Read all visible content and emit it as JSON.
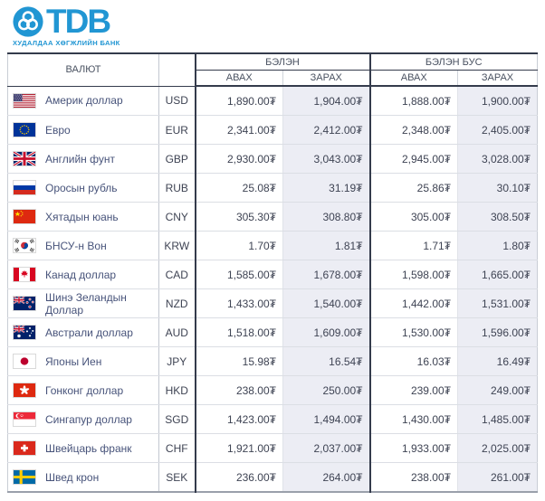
{
  "brand": {
    "name": "TDB",
    "tagline": "ХУДАЛДАА ХӨГЖЛИЙН БАНК"
  },
  "colors": {
    "brand_blue": "#2196d3",
    "header_border": "#343b4c",
    "sell_column_bg": "#ecedf4",
    "table_bottom_border": "#9aa0ab"
  },
  "table": {
    "columns": {
      "currency": "ВАЛЮТ",
      "cash": "БЭЛЭН",
      "non_cash": "БЭЛЭН БУС",
      "buy": "АВАХ",
      "sell": "ЗАРАХ"
    },
    "rows": [
      {
        "name": "Америк доллар",
        "code": "USD",
        "flag": "flag-usd-icon",
        "cash_buy": "1,890.00₮",
        "cash_sell": "1,904.00₮",
        "noncash_buy": "1,888.00₮",
        "noncash_sell": "1,900.00₮"
      },
      {
        "name": "Евро",
        "code": "EUR",
        "flag": "flag-eur-icon",
        "cash_buy": "2,341.00₮",
        "cash_sell": "2,412.00₮",
        "noncash_buy": "2,348.00₮",
        "noncash_sell": "2,405.00₮"
      },
      {
        "name": "Английн фунт",
        "code": "GBP",
        "flag": "flag-gbp-icon",
        "cash_buy": "2,930.00₮",
        "cash_sell": "3,043.00₮",
        "noncash_buy": "2,945.00₮",
        "noncash_sell": "3,028.00₮"
      },
      {
        "name": "Оросын рубль",
        "code": "RUB",
        "flag": "flag-rub-icon",
        "cash_buy": "25.08₮",
        "cash_sell": "31.19₮",
        "noncash_buy": "25.86₮",
        "noncash_sell": "30.10₮"
      },
      {
        "name": "Хятадын юань",
        "code": "CNY",
        "flag": "flag-cny-icon",
        "cash_buy": "305.30₮",
        "cash_sell": "308.80₮",
        "noncash_buy": "305.00₮",
        "noncash_sell": "308.50₮"
      },
      {
        "name": "БНСУ-н Вон",
        "code": "KRW",
        "flag": "flag-krw-icon",
        "cash_buy": "1.70₮",
        "cash_sell": "1.81₮",
        "noncash_buy": "1.71₮",
        "noncash_sell": "1.80₮"
      },
      {
        "name": "Канад доллар",
        "code": "CAD",
        "flag": "flag-cad-icon",
        "cash_buy": "1,585.00₮",
        "cash_sell": "1,678.00₮",
        "noncash_buy": "1,598.00₮",
        "noncash_sell": "1,665.00₮"
      },
      {
        "name": "Шинэ Зеландын Доллар",
        "code": "NZD",
        "flag": "flag-nzd-icon",
        "cash_buy": "1,433.00₮",
        "cash_sell": "1,540.00₮",
        "noncash_buy": "1,442.00₮",
        "noncash_sell": "1,531.00₮"
      },
      {
        "name": "Австрали доллар",
        "code": "AUD",
        "flag": "flag-aud-icon",
        "cash_buy": "1,518.00₮",
        "cash_sell": "1,609.00₮",
        "noncash_buy": "1,530.00₮",
        "noncash_sell": "1,596.00₮"
      },
      {
        "name": "Японы Иен",
        "code": "JPY",
        "flag": "flag-jpy-icon",
        "cash_buy": "15.98₮",
        "cash_sell": "16.54₮",
        "noncash_buy": "16.03₮",
        "noncash_sell": "16.49₮"
      },
      {
        "name": "Гонконг доллар",
        "code": "HKD",
        "flag": "flag-hkd-icon",
        "cash_buy": "238.00₮",
        "cash_sell": "250.00₮",
        "noncash_buy": "239.00₮",
        "noncash_sell": "249.00₮"
      },
      {
        "name": "Сингапур доллар",
        "code": "SGD",
        "flag": "flag-sgd-icon",
        "cash_buy": "1,423.00₮",
        "cash_sell": "1,494.00₮",
        "noncash_buy": "1,430.00₮",
        "noncash_sell": "1,485.00₮"
      },
      {
        "name": "Швейцарь франк",
        "code": "CHF",
        "flag": "flag-chf-icon",
        "cash_buy": "1,921.00₮",
        "cash_sell": "2,037.00₮",
        "noncash_buy": "1,933.00₮",
        "noncash_sell": "2,025.00₮"
      },
      {
        "name": "Швед крон",
        "code": "SEK",
        "flag": "flag-sek-icon",
        "cash_buy": "236.00₮",
        "cash_sell": "264.00₮",
        "noncash_buy": "238.00₮",
        "noncash_sell": "261.00₮"
      }
    ]
  }
}
